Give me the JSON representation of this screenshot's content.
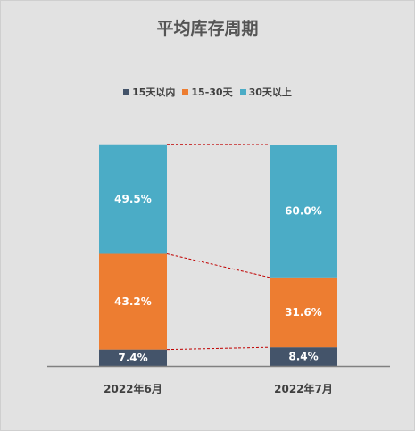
{
  "chart_data": {
    "type": "bar",
    "stacked": true,
    "title": "平均库存周期",
    "categories": [
      "2022年6月",
      "2022年7月"
    ],
    "series": [
      {
        "name": "15天以内",
        "color": "#44546a",
        "values": [
          7.4,
          8.4
        ],
        "labels": [
          "7.4%",
          "8.4%"
        ]
      },
      {
        "name": "15-30天",
        "color": "#ed7d31",
        "values": [
          43.2,
          31.6
        ],
        "labels": [
          "43.2%",
          "31.6%"
        ]
      },
      {
        "name": "30天以上",
        "color": "#4bacc6",
        "values": [
          49.5,
          60.0
        ],
        "labels": [
          "49.5%",
          "60.0%"
        ]
      }
    ],
    "ylim": [
      0,
      100
    ],
    "legend_position": "top",
    "grid": false,
    "connector_lines": true,
    "connector_color": "#c00000"
  }
}
